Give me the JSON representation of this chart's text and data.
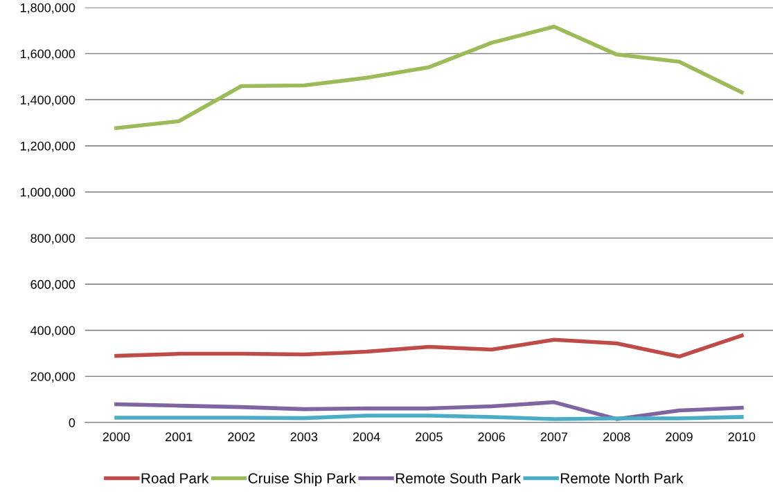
{
  "chart_data": {
    "type": "line",
    "categories": [
      "2000",
      "2001",
      "2002",
      "2003",
      "2004",
      "2005",
      "2006",
      "2007",
      "2008",
      "2009",
      "2010"
    ],
    "ylim": [
      0,
      1800000
    ],
    "yticks": [
      {
        "value": 0,
        "label": "0"
      },
      {
        "value": 200000,
        "label": "200,000"
      },
      {
        "value": 400000,
        "label": "400,000"
      },
      {
        "value": 600000,
        "label": "600,000"
      },
      {
        "value": 800000,
        "label": "800,000"
      },
      {
        "value": 1000000,
        "label": "1,000,000"
      },
      {
        "value": 1200000,
        "label": "1,200,000"
      },
      {
        "value": 1400000,
        "label": "1,400,000"
      },
      {
        "value": 1600000,
        "label": "1,600,000"
      },
      {
        "value": 1800000,
        "label": "1,800,000"
      }
    ],
    "grid": "y",
    "legend": "bottom",
    "marker": "none",
    "line_style": "solid",
    "series": [
      {
        "name": "Road Park",
        "color": "#be4b48",
        "values": [
          289000,
          298000,
          298000,
          295000,
          307000,
          328000,
          316000,
          359000,
          343000,
          286000,
          377000
        ]
      },
      {
        "name": "Cruise Ship Park",
        "color": "#9bbb59",
        "values": [
          1277000,
          1307000,
          1459000,
          1462000,
          1495000,
          1541000,
          1647000,
          1717000,
          1596000,
          1565000,
          1432000
        ]
      },
      {
        "name": "Remote South Park",
        "color": "#8064a2",
        "values": [
          79000,
          73000,
          67000,
          58000,
          61000,
          61000,
          70000,
          88000,
          15000,
          52000,
          64000
        ]
      },
      {
        "name": "Remote North Park",
        "color": "#4bacc6",
        "values": [
          21000,
          21000,
          21000,
          19000,
          30000,
          30000,
          24000,
          15000,
          18000,
          18000,
          24000
        ]
      }
    ]
  }
}
